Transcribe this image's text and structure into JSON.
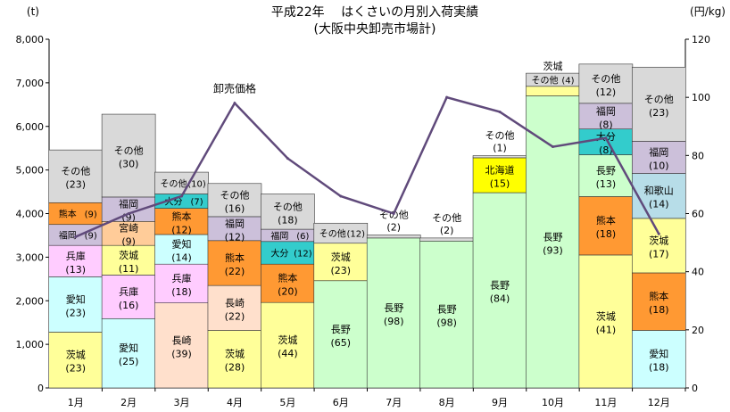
{
  "chart_data": {
    "type": "bar",
    "title": "平成22年　 はくさいの月別入荷実績",
    "subtitle": "(大阪中央卸売市場計)",
    "y_left_unit": "(t)",
    "y_right_unit": "(円/kg)",
    "ylim": [
      0,
      8000
    ],
    "y2lim": [
      0,
      120
    ],
    "y_ticks": [
      "0",
      "1,000",
      "2,000",
      "3,000",
      "4,000",
      "5,000",
      "6,000",
      "7,000",
      "8,000"
    ],
    "y2_ticks": [
      "0",
      "20",
      "40",
      "60",
      "80",
      "100",
      "120"
    ],
    "grid": false,
    "categories": [
      "1月",
      "2月",
      "3月",
      "4月",
      "5月",
      "6月",
      "7月",
      "8月",
      "9月",
      "10月",
      "11月",
      "12月"
    ],
    "price_series": {
      "name": "卸売価格",
      "values": [
        52,
        60,
        66,
        98,
        79,
        66,
        60,
        100,
        95,
        83,
        86,
        53
      ]
    },
    "colors": {
      "茨城": "#ffff99",
      "愛知": "#ccffff",
      "兵庫": "#ffccff",
      "長崎": "#ffe0cc",
      "長野": "#ccffcc",
      "熊本": "#ff9933",
      "福岡": "#ccc0da",
      "宮崎": "#ffcc99",
      "大分": "#33cccc",
      "北海道": "#ffff00",
      "和歌山": "#b7dde8",
      "その他": "#d9d9d9",
      "line": "#604a7b"
    },
    "stacks": [
      {
        "month": "1月",
        "segments": [
          {
            "label": "茨城",
            "pct": "(23)",
            "value": 1280
          },
          {
            "label": "愛知",
            "pct": "(23)",
            "value": 1270
          },
          {
            "label": "兵庫",
            "pct": "(13)",
            "value": 720
          },
          {
            "label": "福岡",
            "pct": "(9)",
            "value": 480
          },
          {
            "label": "熊本",
            "pct": "(9)",
            "value": 500
          },
          {
            "label": "その他",
            "pct": "(23)",
            "value": 1210
          }
        ]
      },
      {
        "month": "2月",
        "segments": [
          {
            "label": "愛知",
            "pct": "(25)",
            "value": 1590
          },
          {
            "label": "兵庫",
            "pct": "(16)",
            "value": 1000
          },
          {
            "label": "茨城",
            "pct": "(11)",
            "value": 680
          },
          {
            "label": "宮崎",
            "pct": "(9)",
            "value": 550
          },
          {
            "label": "福岡",
            "pct": "(9)",
            "value": 560
          },
          {
            "label": "その他",
            "pct": "(30)",
            "value": 1900
          }
        ]
      },
      {
        "month": "3月",
        "segments": [
          {
            "label": "長崎",
            "pct": "(39)",
            "value": 1950
          },
          {
            "label": "兵庫",
            "pct": "(18)",
            "value": 890
          },
          {
            "label": "愛知",
            "pct": "(14)",
            "value": 680
          },
          {
            "label": "熊本",
            "pct": "(12)",
            "value": 600
          },
          {
            "label": "大分",
            "pct": "(7)",
            "value": 330
          },
          {
            "label": "その他",
            "pct": "(10)",
            "value": 500
          }
        ]
      },
      {
        "month": "4月",
        "segments": [
          {
            "label": "茨城",
            "pct": "(28)",
            "value": 1320
          },
          {
            "label": "長崎",
            "pct": "(22)",
            "value": 1030
          },
          {
            "label": "熊本",
            "pct": "(22)",
            "value": 1030
          },
          {
            "label": "福岡",
            "pct": "(12)",
            "value": 550
          },
          {
            "label": "その他",
            "pct": "(16)",
            "value": 760
          }
        ]
      },
      {
        "month": "5月",
        "segments": [
          {
            "label": "茨城",
            "pct": "(44)",
            "value": 1960
          },
          {
            "label": "熊本",
            "pct": "(20)",
            "value": 880
          },
          {
            "label": "大分",
            "pct": "(12)",
            "value": 520
          },
          {
            "label": "福岡",
            "pct": "(6)",
            "value": 280
          },
          {
            "label": "その他",
            "pct": "(18)",
            "value": 810
          }
        ]
      },
      {
        "month": "6月",
        "segments": [
          {
            "label": "長野",
            "pct": "(65)",
            "value": 2460
          },
          {
            "label": "茨城",
            "pct": "(23)",
            "value": 860
          },
          {
            "label": "その他",
            "pct": "(12)",
            "value": 460
          }
        ]
      },
      {
        "month": "7月",
        "segments": [
          {
            "label": "長野",
            "pct": "(98)",
            "value": 3440
          },
          {
            "label": "その他",
            "pct": "(2)",
            "value": 70
          }
        ]
      },
      {
        "month": "8月",
        "segments": [
          {
            "label": "長野",
            "pct": "(98)",
            "value": 3370
          },
          {
            "label": "その他",
            "pct": "(2)",
            "value": 70
          }
        ]
      },
      {
        "month": "9月",
        "segments": [
          {
            "label": "長野",
            "pct": "(84)",
            "value": 4480
          },
          {
            "label": "北海道",
            "pct": "(15)",
            "value": 800
          },
          {
            "label": "その他",
            "pct": "(1)",
            "value": 50
          }
        ]
      },
      {
        "month": "10月",
        "segments": [
          {
            "label": "長野",
            "pct": "(93)",
            "value": 6700
          },
          {
            "label": "茨城",
            "pct": "(3)",
            "value": 220
          },
          {
            "label": "その他",
            "pct": "(4)",
            "value": 300
          }
        ]
      },
      {
        "month": "11月",
        "segments": [
          {
            "label": "茨城",
            "pct": "(41)",
            "value": 3050
          },
          {
            "label": "熊本",
            "pct": "(18)",
            "value": 1340
          },
          {
            "label": "長野",
            "pct": "(13)",
            "value": 960
          },
          {
            "label": "大分",
            "pct": "(8)",
            "value": 590
          },
          {
            "label": "福岡",
            "pct": "(8)",
            "value": 590
          },
          {
            "label": "その他",
            "pct": "(12)",
            "value": 900
          }
        ]
      },
      {
        "month": "12月",
        "segments": [
          {
            "label": "愛知",
            "pct": "(18)",
            "value": 1320
          },
          {
            "label": "熊本",
            "pct": "(18)",
            "value": 1320
          },
          {
            "label": "茨城",
            "pct": "(17)",
            "value": 1250
          },
          {
            "label": "和歌山",
            "pct": "(14)",
            "value": 1030
          },
          {
            "label": "福岡",
            "pct": "(10)",
            "value": 740
          },
          {
            "label": "その他",
            "pct": "(23)",
            "value": 1700
          }
        ]
      }
    ]
  }
}
